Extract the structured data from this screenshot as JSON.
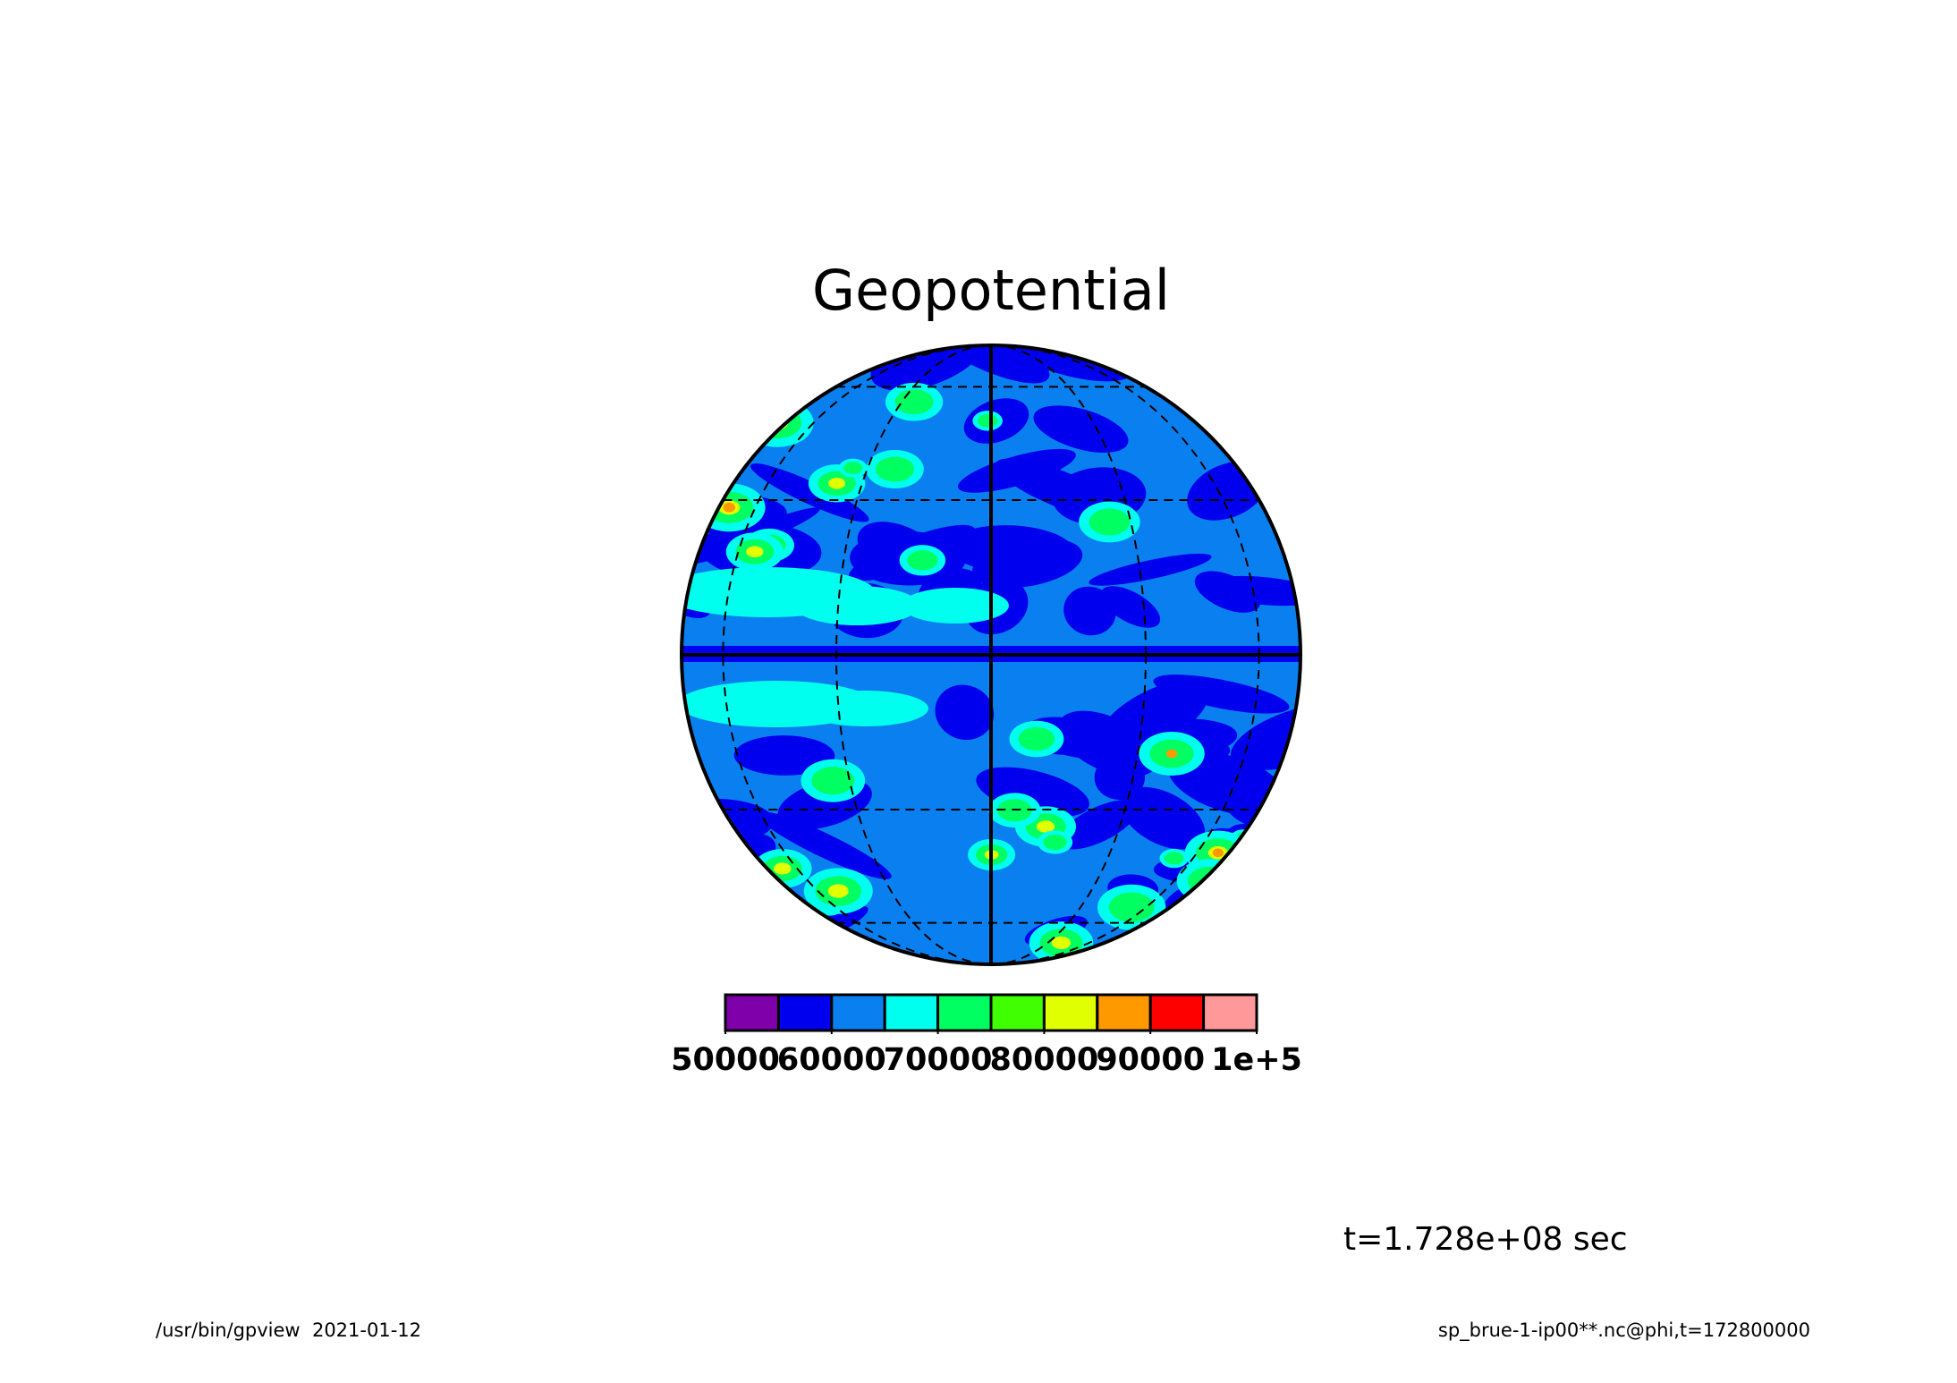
{
  "chart_data": {
    "type": "globe-contour",
    "title": "Geopotential",
    "colorbar": {
      "levels": [
        50000,
        55000,
        60000,
        65000,
        70000,
        75000,
        80000,
        85000,
        90000,
        95000,
        100000
      ],
      "colors": [
        "#7f00aa",
        "#0000ee",
        "#0a80f0",
        "#00ffee",
        "#00ff60",
        "#40ff00",
        "#e0ff00",
        "#ff9900",
        "#ff0000",
        "#ff9999"
      ],
      "ticks": [
        50000,
        60000,
        70000,
        80000,
        90000,
        {
          "value": 100000,
          "label": "1e+5"
        }
      ]
    },
    "annotations": [
      "t=1.728e+08 sec",
      "/usr/bin/gpview  2021-01-12",
      "sp_brue-1-ip00**.nc@phi,t=172800000"
    ]
  }
}
